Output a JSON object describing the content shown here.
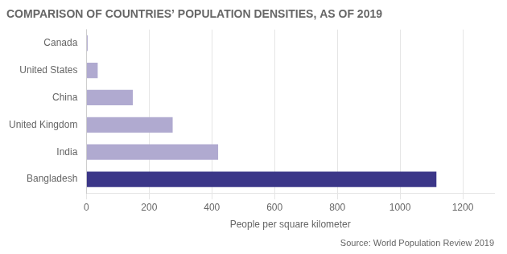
{
  "chart_data": {
    "type": "bar",
    "orientation": "horizontal",
    "title": "COMPARISON OF COUNTRIES’ POPULATION DENSITIES, AS OF 2019",
    "source": "Source: World Population Review 2019",
    "categories": [
      "Bangladesh",
      "India",
      "United Kingdom",
      "China",
      "United States",
      "Canada"
    ],
    "values": [
      1116,
      420,
      275,
      148,
      36,
      4
    ],
    "colors": [
      "#3b3688",
      "#b0aad0",
      "#b0aad0",
      "#b0aad0",
      "#b0aad0",
      "#b0aad0"
    ],
    "xlabel": "People per square kilometer",
    "xlim": [
      0,
      1300
    ],
    "xticks": [
      0,
      200,
      400,
      600,
      800,
      1000,
      1200
    ],
    "grid": true
  }
}
